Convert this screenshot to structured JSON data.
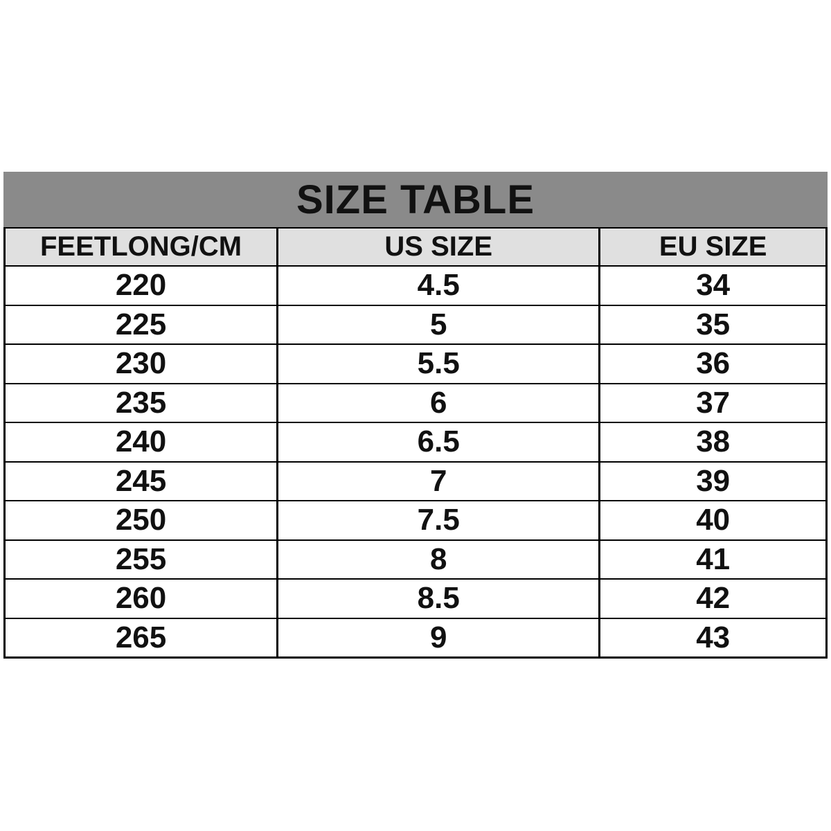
{
  "page": {
    "background": "#ffffff"
  },
  "colors": {
    "title_bg": "#8a8a8a",
    "header_bg": "#e0e0e0",
    "border": "#000000",
    "text": "#111111"
  },
  "chart_data": {
    "type": "table",
    "title": "SIZE TABLE",
    "columns": [
      "FEETLONG/CM",
      "US SIZE",
      "EU SIZE"
    ],
    "rows": [
      [
        "220",
        "4.5",
        "34"
      ],
      [
        "225",
        "5",
        "35"
      ],
      [
        "230",
        "5.5",
        "36"
      ],
      [
        "235",
        "6",
        "37"
      ],
      [
        "240",
        "6.5",
        "38"
      ],
      [
        "245",
        "7",
        "39"
      ],
      [
        "250",
        "7.5",
        "40"
      ],
      [
        "255",
        "8",
        "41"
      ],
      [
        "260",
        "8.5",
        "42"
      ],
      [
        "265",
        "9",
        "43"
      ]
    ]
  }
}
